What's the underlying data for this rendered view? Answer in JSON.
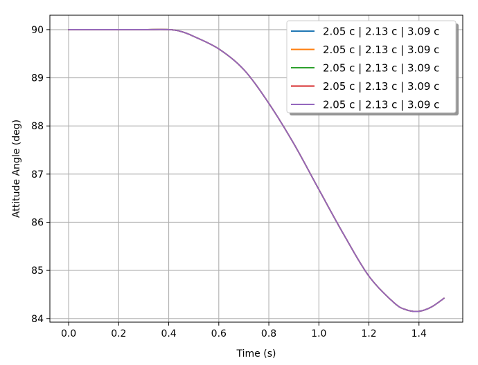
{
  "chart_data": {
    "type": "line",
    "title": "",
    "xlabel": "Time (s)",
    "ylabel": "Attitude Angle (deg)",
    "xlim": [
      -0.075,
      1.575
    ],
    "ylim": [
      83.925,
      90.3
    ],
    "xticks": [
      0.0,
      0.2,
      0.4,
      0.6,
      0.8,
      1.0,
      1.2,
      1.4
    ],
    "xtick_labels": [
      "0.0",
      "0.2",
      "0.4",
      "0.6",
      "0.8",
      "1.0",
      "1.2",
      "1.4"
    ],
    "yticks": [
      84,
      85,
      86,
      87,
      88,
      89,
      90
    ],
    "ytick_labels": [
      "84",
      "85",
      "86",
      "87",
      "88",
      "89",
      "90"
    ],
    "grid": true,
    "legend_position": "top-right",
    "x": [
      0.0,
      0.1,
      0.2,
      0.3,
      0.4,
      0.45,
      0.5,
      0.6,
      0.7,
      0.8,
      0.9,
      1.0,
      1.1,
      1.2,
      1.3,
      1.35,
      1.4,
      1.45,
      1.5
    ],
    "series": [
      {
        "name": "2.05 c | 2.13 c | 3.09 c",
        "color": "#1f77b4",
        "values": [
          90.0,
          90.0,
          90.0,
          90.0,
          90.0,
          89.96,
          89.86,
          89.6,
          89.17,
          88.47,
          87.63,
          86.68,
          85.74,
          84.88,
          84.33,
          84.18,
          84.15,
          84.24,
          84.42
        ]
      },
      {
        "name": "2.05 c | 2.13 c | 3.09 c",
        "color": "#ff7f0e",
        "values": [
          90.0,
          90.0,
          90.0,
          90.0,
          90.0,
          89.96,
          89.86,
          89.6,
          89.17,
          88.47,
          87.63,
          86.68,
          85.74,
          84.88,
          84.33,
          84.18,
          84.15,
          84.24,
          84.42
        ]
      },
      {
        "name": "2.05 c | 2.13 c | 3.09 c",
        "color": "#2ca02c",
        "values": [
          90.0,
          90.0,
          90.0,
          90.0,
          90.0,
          89.96,
          89.86,
          89.6,
          89.17,
          88.47,
          87.63,
          86.68,
          85.74,
          84.88,
          84.33,
          84.18,
          84.15,
          84.24,
          84.42
        ]
      },
      {
        "name": "2.05 c | 2.13 c | 3.09 c",
        "color": "#d62728",
        "values": [
          90.0,
          90.0,
          90.0,
          90.0,
          90.0,
          89.96,
          89.86,
          89.6,
          89.17,
          88.47,
          87.63,
          86.68,
          85.74,
          84.88,
          84.33,
          84.18,
          84.15,
          84.24,
          84.42
        ]
      },
      {
        "name": "2.05 c | 2.13 c | 3.09 c",
        "color": "#9467bd",
        "values": [
          90.0,
          90.0,
          90.0,
          90.0,
          90.0,
          89.96,
          89.86,
          89.6,
          89.17,
          88.47,
          87.63,
          86.68,
          85.74,
          84.88,
          84.33,
          84.18,
          84.15,
          84.24,
          84.42
        ]
      }
    ]
  }
}
